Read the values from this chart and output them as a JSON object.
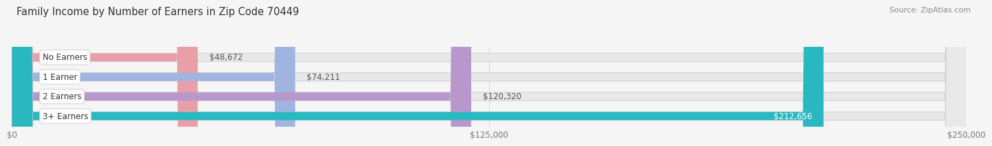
{
  "title": "Family Income by Number of Earners in Zip Code 70449",
  "source": "Source: ZipAtlas.com",
  "categories": [
    "No Earners",
    "1 Earner",
    "2 Earners",
    "3+ Earners"
  ],
  "values": [
    48672,
    74211,
    120320,
    212656
  ],
  "value_labels": [
    "$48,672",
    "$74,211",
    "$120,320",
    "$212,656"
  ],
  "bar_colors": [
    "#e8a0a8",
    "#a0b4e0",
    "#b898cc",
    "#2ab8c0"
  ],
  "xmax": 250000,
  "xticks": [
    0,
    125000,
    250000
  ],
  "xtick_labels": [
    "$0",
    "$125,000",
    "$250,000"
  ],
  "title_fontsize": 10.5,
  "source_fontsize": 8,
  "label_fontsize": 8.5,
  "value_fontsize": 8.5,
  "bar_height": 0.42,
  "background_color": "#f5f5f5",
  "track_color": "#e8e8e8",
  "track_border_color": "#d0d0d0",
  "label_bg_color": "#ffffff",
  "label_border_color": "#d0d0d0"
}
